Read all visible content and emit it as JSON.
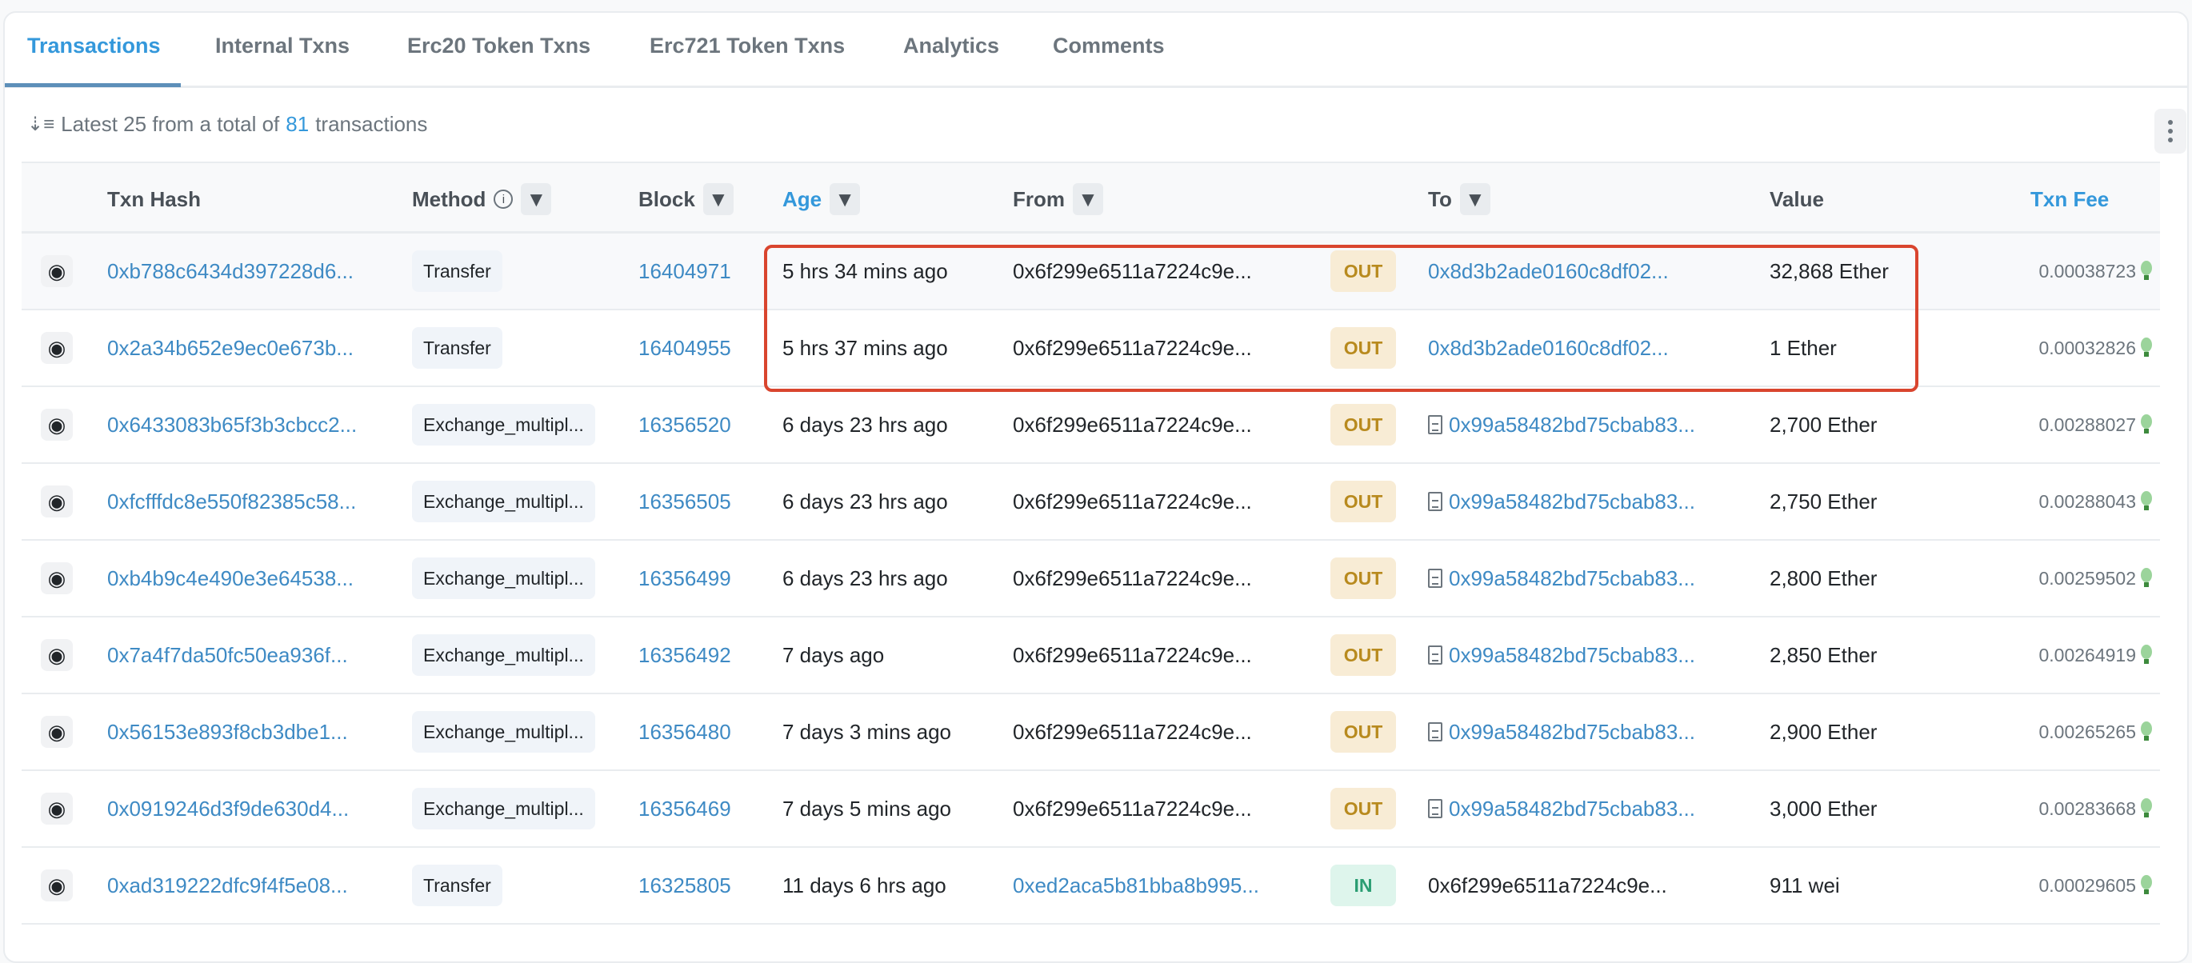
{
  "tabs": [
    "Transactions",
    "Internal Txns",
    "Erc20 Token Txns",
    "Erc721 Token Txns",
    "Analytics",
    "Comments"
  ],
  "summary": {
    "prefix": "Latest 25 from a total of",
    "count": "81",
    "suffix": "transactions"
  },
  "columns": {
    "hash": "Txn Hash",
    "method": "Method",
    "block": "Block",
    "age": "Age",
    "from": "From",
    "to": "To",
    "value": "Value",
    "fee": "Txn Fee"
  },
  "accent_color": "#3498db",
  "highlight_color": "#d9452e",
  "rows": [
    {
      "hash": "0xb788c6434d397228d6...",
      "method": "Transfer",
      "block": "16404971",
      "age": "5 hrs 34 mins ago",
      "from": "0x6f299e6511a7224c9e...",
      "dir": "OUT",
      "to": "0x8d3b2ade0160c8df02...",
      "to_contract": false,
      "to_link": true,
      "value": "32,868 Ether",
      "fee": "0.00038723"
    },
    {
      "hash": "0x2a34b652e9ec0e673b...",
      "method": "Transfer",
      "block": "16404955",
      "age": "5 hrs 37 mins ago",
      "from": "0x6f299e6511a7224c9e...",
      "dir": "OUT",
      "to": "0x8d3b2ade0160c8df02...",
      "to_contract": false,
      "to_link": true,
      "value": "1 Ether",
      "fee": "0.00032826"
    },
    {
      "hash": "0x6433083b65f3b3cbcc2...",
      "method": "Exchange_multipl...",
      "block": "16356520",
      "age": "6 days 23 hrs ago",
      "from": "0x6f299e6511a7224c9e...",
      "dir": "OUT",
      "to": "0x99a58482bd75cbab83...",
      "to_contract": true,
      "to_link": true,
      "value": "2,700 Ether",
      "fee": "0.00288027"
    },
    {
      "hash": "0xfcfffdc8e550f82385c58...",
      "method": "Exchange_multipl...",
      "block": "16356505",
      "age": "6 days 23 hrs ago",
      "from": "0x6f299e6511a7224c9e...",
      "dir": "OUT",
      "to": "0x99a58482bd75cbab83...",
      "to_contract": true,
      "to_link": true,
      "value": "2,750 Ether",
      "fee": "0.00288043"
    },
    {
      "hash": "0xb4b9c4e490e3e64538...",
      "method": "Exchange_multipl...",
      "block": "16356499",
      "age": "6 days 23 hrs ago",
      "from": "0x6f299e6511a7224c9e...",
      "dir": "OUT",
      "to": "0x99a58482bd75cbab83...",
      "to_contract": true,
      "to_link": true,
      "value": "2,800 Ether",
      "fee": "0.00259502"
    },
    {
      "hash": "0x7a4f7da50fc50ea936f...",
      "method": "Exchange_multipl...",
      "block": "16356492",
      "age": "7 days ago",
      "from": "0x6f299e6511a7224c9e...",
      "dir": "OUT",
      "to": "0x99a58482bd75cbab83...",
      "to_contract": true,
      "to_link": true,
      "value": "2,850 Ether",
      "fee": "0.00264919"
    },
    {
      "hash": "0x56153e893f8cb3dbe1...",
      "method": "Exchange_multipl...",
      "block": "16356480",
      "age": "7 days 3 mins ago",
      "from": "0x6f299e6511a7224c9e...",
      "dir": "OUT",
      "to": "0x99a58482bd75cbab83...",
      "to_contract": true,
      "to_link": true,
      "value": "2,900 Ether",
      "fee": "0.00265265"
    },
    {
      "hash": "0x0919246d3f9de630d4...",
      "method": "Exchange_multipl...",
      "block": "16356469",
      "age": "7 days 5 mins ago",
      "from": "0x6f299e6511a7224c9e...",
      "dir": "OUT",
      "to": "0x99a58482bd75cbab83...",
      "to_contract": true,
      "to_link": true,
      "value": "3,000 Ether",
      "fee": "0.00283668"
    },
    {
      "hash": "0xad319222dfc9f4f5e08...",
      "method": "Transfer",
      "block": "16325805",
      "age": "11 days 6 hrs ago",
      "from": "0xed2aca5b81bba8b995...",
      "from_link": true,
      "dir": "IN",
      "to": "0x6f299e6511a7224c9e...",
      "to_contract": false,
      "to_link": false,
      "value": "911 wei",
      "fee": "0.00029605"
    }
  ]
}
